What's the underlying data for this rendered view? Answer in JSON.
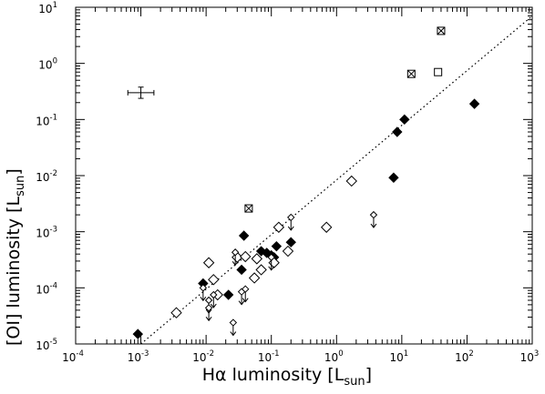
{
  "chart_data": {
    "type": "scatter",
    "title": "",
    "xlabel": {
      "main": "Hα luminosity [L",
      "sub": "sun",
      "close": "]"
    },
    "ylabel": {
      "main": "[OI] luminosity [L",
      "sub": "sun",
      "close": "]"
    },
    "xscale": "log",
    "yscale": "log",
    "xlim_exp": [
      -4,
      3
    ],
    "ylim_exp": [
      -5,
      1
    ],
    "x_tick_labels": [
      {
        "base": "10",
        "exp": "-4"
      },
      {
        "base": "10",
        "exp": "-3"
      },
      {
        "base": "10",
        "exp": "-2"
      },
      {
        "base": "10",
        "exp": "-1"
      },
      {
        "base": "10",
        "exp": "0"
      },
      {
        "base": "10",
        "exp": "1"
      },
      {
        "base": "10",
        "exp": "2"
      },
      {
        "base": "10",
        "exp": "3"
      }
    ],
    "y_tick_labels": [
      {
        "base": "10",
        "exp": "-5"
      },
      {
        "base": "10",
        "exp": "-4"
      },
      {
        "base": "10",
        "exp": "-3"
      },
      {
        "base": "10",
        "exp": "-2"
      },
      {
        "base": "10",
        "exp": "-1"
      },
      {
        "base": "10",
        "exp": "0"
      },
      {
        "base": "10",
        "exp": "1"
      }
    ],
    "grid": false,
    "legend": "none",
    "fit_line": {
      "style": "dotted",
      "from": [
        0.001,
        1e-05
      ],
      "to": [
        1000,
        7
      ]
    },
    "error_bar_example": {
      "x": 0.001,
      "y": 0.3,
      "x_half_decades": 0.2,
      "y_half_decades": 0.1
    },
    "series": [
      {
        "marker": "diamond-filled",
        "points": [
          {
            "x": 0.0009,
            "y": 1.5e-05
          },
          {
            "x": 0.009,
            "y": 0.00012
          },
          {
            "x": 0.022,
            "y": 7.5e-05
          },
          {
            "x": 0.035,
            "y": 0.00021
          },
          {
            "x": 0.038,
            "y": 0.00085
          },
          {
            "x": 0.07,
            "y": 0.00045
          },
          {
            "x": 0.085,
            "y": 0.00042
          },
          {
            "x": 0.1,
            "y": 0.00038
          },
          {
            "x": 0.11,
            "y": 0.00035
          },
          {
            "x": 0.12,
            "y": 0.00055
          },
          {
            "x": 0.2,
            "y": 0.00065
          },
          {
            "x": 7.5,
            "y": 0.0092
          },
          {
            "x": 8.5,
            "y": 0.06
          },
          {
            "x": 11,
            "y": 0.1
          },
          {
            "x": 130,
            "y": 0.19
          }
        ]
      },
      {
        "marker": "diamond-open",
        "points": [
          {
            "x": 0.0035,
            "y": 3.6e-05
          },
          {
            "x": 0.011,
            "y": 0.00028
          },
          {
            "x": 0.013,
            "y": 0.00014
          },
          {
            "x": 0.015,
            "y": 7.5e-05
          },
          {
            "x": 0.03,
            "y": 0.00035
          },
          {
            "x": 0.04,
            "y": 0.00036
          },
          {
            "x": 0.055,
            "y": 0.00015
          },
          {
            "x": 0.06,
            "y": 0.00033
          },
          {
            "x": 0.07,
            "y": 0.00021
          },
          {
            "x": 0.11,
            "y": 0.00028
          },
          {
            "x": 0.13,
            "y": 0.0012
          },
          {
            "x": 0.18,
            "y": 0.00045
          },
          {
            "x": 0.7,
            "y": 0.0012
          },
          {
            "x": 1.7,
            "y": 0.008
          }
        ]
      },
      {
        "marker": "diamond-open-upper-limit",
        "points": [
          {
            "x": 0.009,
            "y": 0.0001
          },
          {
            "x": 0.011,
            "y": 6e-05
          },
          {
            "x": 0.011,
            "y": 4.4e-05
          },
          {
            "x": 0.013,
            "y": 7.5e-05
          },
          {
            "x": 0.026,
            "y": 2.4e-05
          },
          {
            "x": 0.028,
            "y": 0.00043
          },
          {
            "x": 0.035,
            "y": 8.5e-05
          },
          {
            "x": 0.04,
            "y": 9.5e-05
          },
          {
            "x": 0.1,
            "y": 0.00035
          },
          {
            "x": 0.2,
            "y": 0.0018
          },
          {
            "x": 3.7,
            "y": 0.002
          }
        ]
      },
      {
        "marker": "square-crossed",
        "points": [
          {
            "x": 0.045,
            "y": 0.0026
          },
          {
            "x": 14,
            "y": 0.65
          },
          {
            "x": 40,
            "y": 3.8
          }
        ]
      },
      {
        "marker": "square-open",
        "points": [
          {
            "x": 36,
            "y": 0.7
          }
        ]
      }
    ]
  }
}
